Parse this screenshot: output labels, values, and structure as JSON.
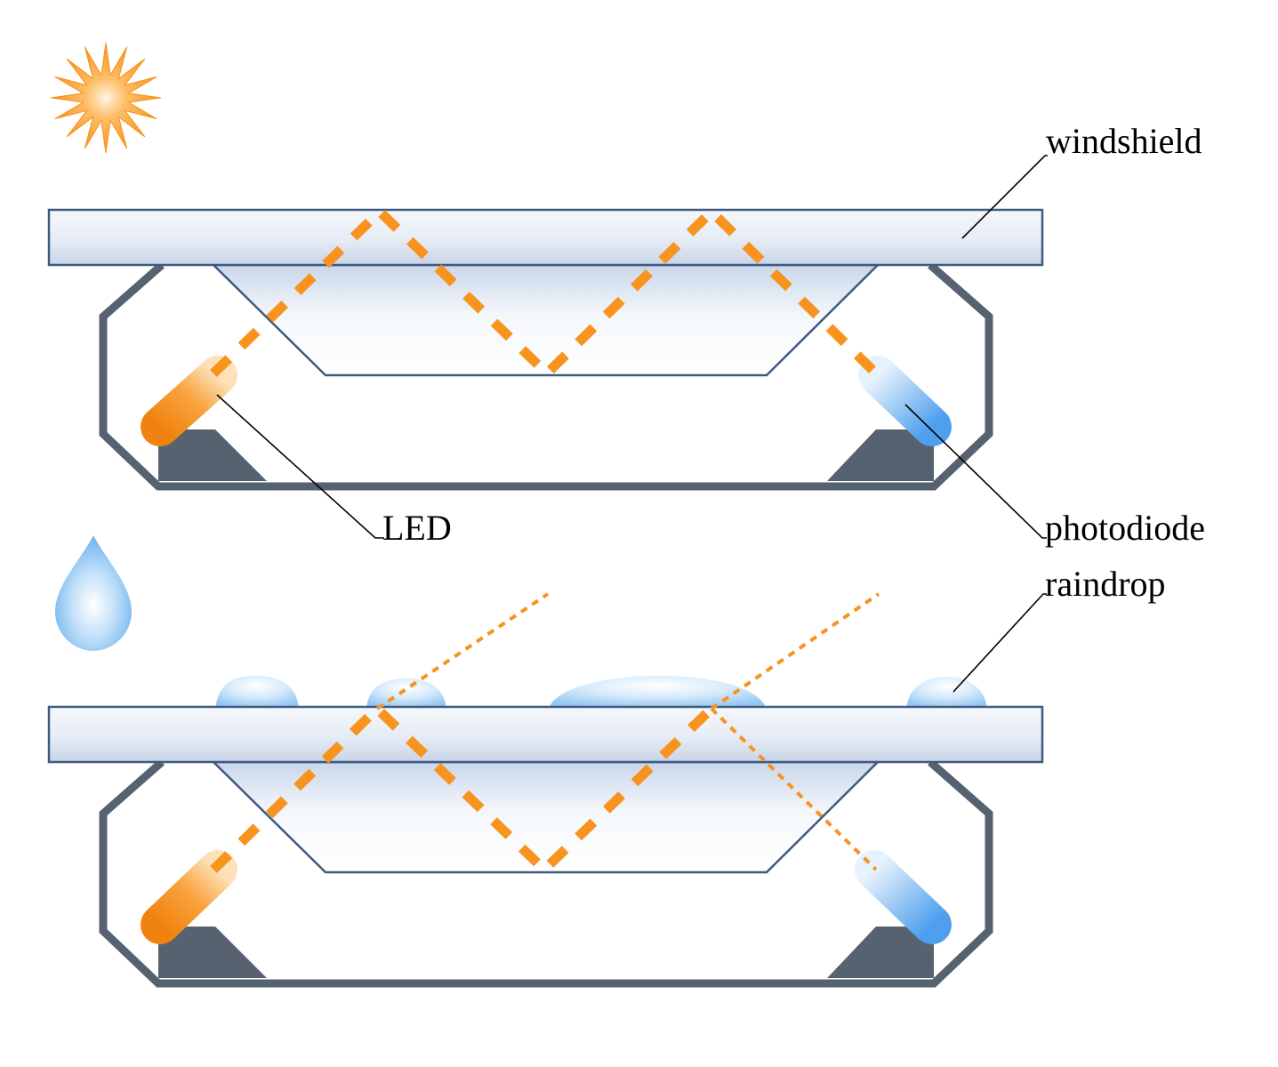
{
  "labels": {
    "windshield": "windshield",
    "led": "LED",
    "photodiode": "photodiode",
    "raindrop": "raindrop"
  },
  "icons": {
    "sun": "sun-icon",
    "raindrop": "raindrop-icon"
  },
  "colors": {
    "beam": "#f7931e",
    "housing": "#56626f",
    "glass_edge": "#3f5a80",
    "glass_fill": "#dfe7f3",
    "led": "#f7931e",
    "photodiode": "#5aa7ef",
    "water": "#a9d4f7"
  }
}
